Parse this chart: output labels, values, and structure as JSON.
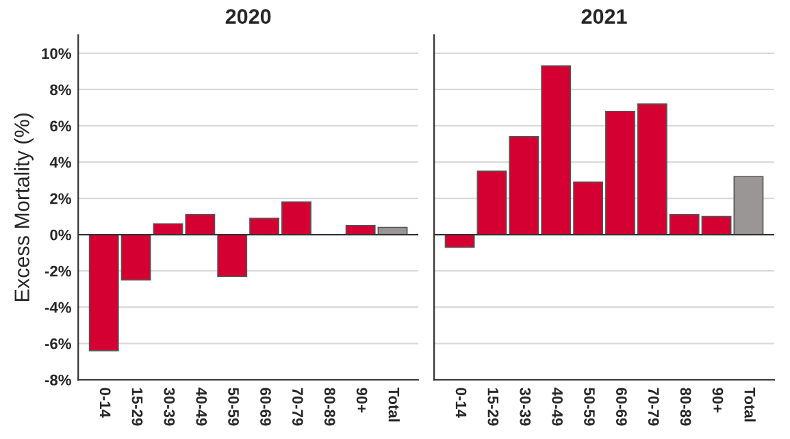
{
  "chart_data": [
    {
      "type": "bar",
      "title": "2020",
      "ylabel": "Excess Mortality (%)",
      "categories": [
        "0-14",
        "15-29",
        "30-39",
        "40-49",
        "50-59",
        "60-69",
        "70-79",
        "80-89",
        "90+",
        "Total"
      ],
      "values": [
        -6.4,
        -2.5,
        0.6,
        1.1,
        -2.3,
        0.9,
        1.8,
        null,
        0.5,
        0.4
      ],
      "colors": [
        "#d50032",
        "#d50032",
        "#d50032",
        "#d50032",
        "#d50032",
        "#d50032",
        "#d50032",
        "#d50032",
        "#d50032",
        "#9a9696"
      ],
      "ylim": [
        -8,
        11
      ],
      "yticks": [
        {
          "value": -8,
          "label": "-8%"
        },
        {
          "value": -6,
          "label": "-6%"
        },
        {
          "value": -4,
          "label": "-4%"
        },
        {
          "value": -2,
          "label": "-2%"
        },
        {
          "value": 0,
          "label": "0%"
        },
        {
          "value": 2,
          "label": "2%"
        },
        {
          "value": 4,
          "label": "4%"
        },
        {
          "value": 6,
          "label": "6%"
        },
        {
          "value": 8,
          "label": "8%"
        },
        {
          "value": 10,
          "label": "10%"
        }
      ],
      "grid": "y"
    },
    {
      "type": "bar",
      "title": "2021",
      "categories": [
        "0-14",
        "15-29",
        "30-39",
        "40-49",
        "50-59",
        "60-69",
        "70-79",
        "80-89",
        "90+",
        "Total"
      ],
      "values": [
        -0.7,
        3.5,
        5.4,
        9.3,
        2.9,
        6.8,
        7.2,
        1.1,
        1.0,
        3.2
      ],
      "colors": [
        "#d50032",
        "#d50032",
        "#d50032",
        "#d50032",
        "#d50032",
        "#d50032",
        "#d50032",
        "#d50032",
        "#d50032",
        "#9a9696"
      ],
      "ylim": [
        -8,
        11
      ],
      "yticks": [
        -8,
        -6,
        -4,
        -2,
        0,
        2,
        4,
        6,
        8,
        10
      ],
      "grid": "y",
      "tick_labels": "x"
    }
  ]
}
